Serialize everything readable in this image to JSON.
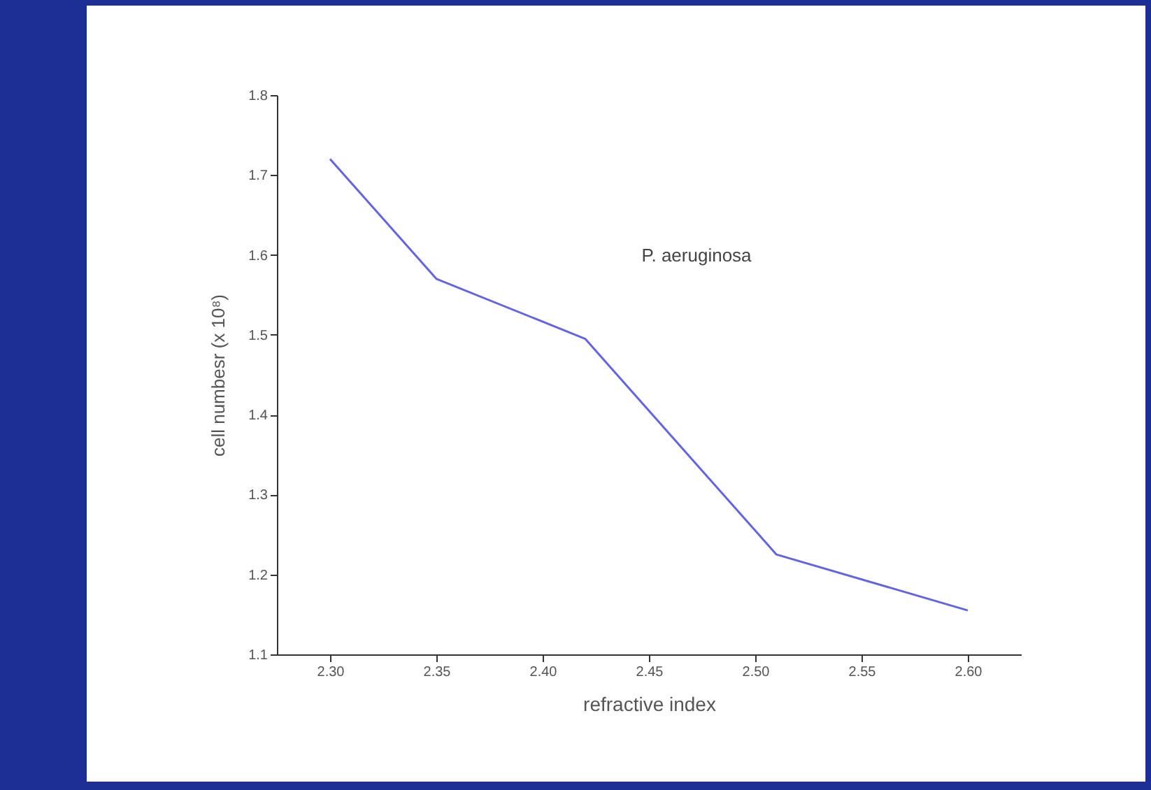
{
  "chart_data": {
    "type": "line",
    "xlabel": "refractive index",
    "ylabel": "cell numbesr (x 10⁸)",
    "x": [
      2.3,
      2.35,
      2.42,
      2.51,
      2.6
    ],
    "series": [
      {
        "name": "P. aeruginosa",
        "color": "#6464dc",
        "values": [
          1.72,
          1.57,
          1.495,
          1.225,
          1.155
        ]
      }
    ],
    "xlim": [
      2.275,
      2.625
    ],
    "xticks": [
      {
        "value": 2.3,
        "label": "2.30"
      },
      {
        "value": 2.35,
        "label": "2.35"
      },
      {
        "value": 2.4,
        "label": "2.40"
      },
      {
        "value": 2.45,
        "label": "2.45"
      },
      {
        "value": 2.5,
        "label": "2.50"
      },
      {
        "value": 2.55,
        "label": "2.55"
      },
      {
        "value": 2.6,
        "label": "2.60"
      }
    ],
    "ylim": [
      1.1,
      1.8
    ],
    "yticks": [
      1.1,
      1.2,
      1.3,
      1.4,
      1.5,
      1.6,
      1.7,
      1.8
    ],
    "grid": false,
    "marker": "none",
    "line_style": "solid"
  }
}
